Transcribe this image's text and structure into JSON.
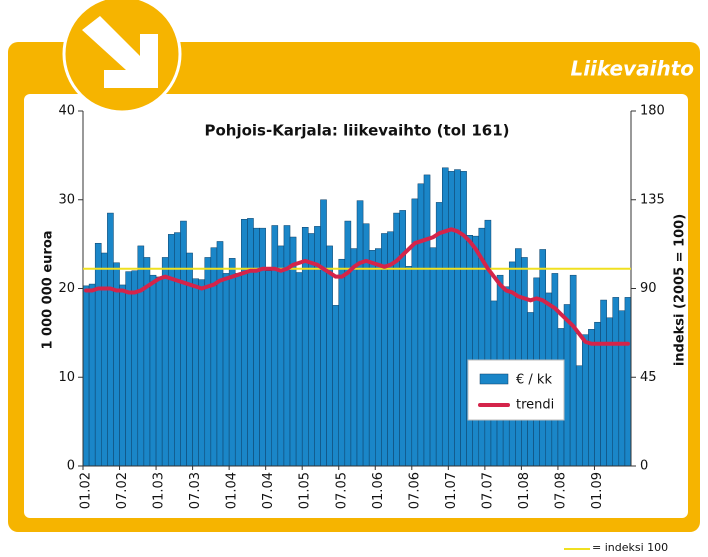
{
  "chart_data": {
    "type": "bar",
    "section_title": "Liikevaihto",
    "title": "Pohjois-Karjala: liikevaihto (tol 161)",
    "y_label": "1 000 000 euroa",
    "y2_label": "indeksi (2005 = 100)",
    "categories": [
      "01.02",
      null,
      null,
      null,
      null,
      null,
      "07.02",
      null,
      null,
      null,
      null,
      null,
      "01.03",
      null,
      null,
      null,
      null,
      null,
      "07.03",
      null,
      null,
      null,
      null,
      null,
      "01.04",
      null,
      null,
      null,
      null,
      null,
      "07.04",
      null,
      null,
      null,
      null,
      null,
      "01.05",
      null,
      null,
      null,
      null,
      null,
      "07.05",
      null,
      null,
      null,
      null,
      null,
      "01.06",
      null,
      null,
      null,
      null,
      null,
      "07.06",
      null,
      null,
      null,
      null,
      null,
      "01.07",
      null,
      null,
      null,
      null,
      null,
      "07.07",
      null,
      null,
      null,
      null,
      null,
      "01.08",
      null,
      null,
      null,
      null,
      null,
      "07.08",
      null,
      null,
      null,
      null,
      null,
      "01.09",
      null,
      null,
      null,
      null,
      null
    ],
    "series": [
      {
        "name": "€ / kk",
        "color": "#1a86c8",
        "values": [
          20.3,
          20.5,
          25.1,
          24,
          28.5,
          22.9,
          20.4,
          21.9,
          22,
          24.8,
          23.5,
          21.5,
          21.3,
          23.5,
          26.1,
          26.3,
          27.6,
          24,
          21.1,
          21,
          23.5,
          24.6,
          25.3,
          21.7,
          23.4,
          21.7,
          27.8,
          27.9,
          26.8,
          26.8,
          22,
          27.1,
          24.8,
          27.1,
          25.8,
          21.8,
          26.9,
          26.2,
          27,
          30,
          24.8,
          18.1,
          23.3,
          27.6,
          24.5,
          29.9,
          27.3,
          24.3,
          24.5,
          26.2,
          26.4,
          28.5,
          28.8,
          22.5,
          30.1,
          31.8,
          32.8,
          24.6,
          29.7,
          33.6,
          33.2,
          33.4,
          33.2,
          26,
          25.9,
          26.8,
          27.7,
          18.6,
          21.5,
          20.2,
          23,
          24.5,
          23.5,
          17.3,
          21.2,
          24.4,
          19.5,
          21.7,
          15.5,
          18.2,
          21.5,
          11.3,
          14.8,
          15.4,
          16.2,
          18.7,
          16.7,
          19,
          17.5,
          19
        ]
      },
      {
        "name": "trendi",
        "color": "#d4244a",
        "axis": "y2",
        "values": [
          89,
          89,
          90,
          90,
          90,
          89,
          89,
          88,
          88,
          89,
          91,
          93,
          95,
          96,
          95,
          94,
          93,
          92,
          91,
          90,
          91,
          92,
          94,
          95,
          96,
          97,
          98,
          99,
          99,
          100,
          100,
          100,
          99,
          100,
          102,
          103,
          104,
          103,
          102,
          100,
          98,
          96,
          96,
          98,
          101,
          103,
          104,
          103,
          102,
          101,
          102,
          104,
          107,
          110,
          113,
          114,
          115,
          116,
          118,
          119,
          120,
          119,
          117,
          114,
          110,
          105,
          100,
          96,
          92,
          89,
          88,
          86,
          85,
          84,
          85,
          84,
          82,
          80,
          77,
          74,
          71,
          67,
          63,
          62,
          62,
          62,
          62,
          62,
          62,
          62
        ]
      }
    ],
    "reference_line": {
      "value": 100,
      "axis": "y2",
      "color": "#f0e020",
      "label": "= indeksi 100"
    },
    "ylim": [
      0,
      40
    ],
    "yticks": [
      0,
      10,
      20,
      30,
      40
    ],
    "y2lim": [
      0,
      180
    ],
    "y2ticks": [
      0,
      45,
      90,
      135,
      180
    ],
    "legend": "lower right",
    "grid": false
  }
}
